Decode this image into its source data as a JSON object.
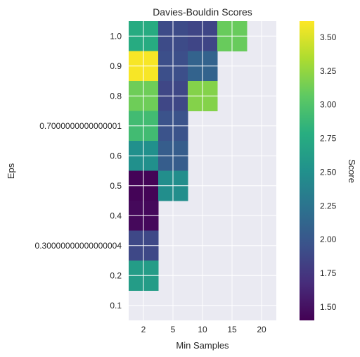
{
  "chart_data": {
    "type": "heatmap",
    "title": "Davies-Bouldin Scores",
    "xlabel": "Min Samples",
    "ylabel": "Eps",
    "x_categories": [
      "2",
      "5",
      "10",
      "15",
      "20"
    ],
    "y_categories": [
      "1.0",
      "0.9",
      "0.8",
      "0.7000000000000001",
      "0.6",
      "0.5",
      "0.4",
      "0.30000000000000004",
      "0.2",
      "0.1"
    ],
    "values": [
      [
        2.76,
        1.9,
        1.86,
        3.1,
        null
      ],
      [
        3.6,
        1.93,
        2.1,
        null,
        null
      ],
      [
        3.12,
        1.87,
        3.2,
        null,
        null
      ],
      [
        2.92,
        1.96,
        null,
        null,
        null
      ],
      [
        2.5,
        2.05,
        null,
        null,
        null
      ],
      [
        1.42,
        2.48,
        null,
        null,
        null
      ],
      [
        1.45,
        null,
        null,
        null,
        null
      ],
      [
        1.88,
        null,
        null,
        null,
        null
      ],
      [
        2.62,
        null,
        null,
        null,
        null
      ],
      [
        null,
        null,
        null,
        null,
        null
      ]
    ],
    "colorbar": {
      "label": "Score",
      "range": [
        1.4,
        3.62
      ],
      "ticks": [
        "1.50",
        "1.75",
        "2.00",
        "2.25",
        "2.50",
        "2.75",
        "3.00",
        "3.25",
        "3.50"
      ],
      "colormap": "viridis"
    },
    "grid": true,
    "background_color": "#eaeaf2"
  }
}
